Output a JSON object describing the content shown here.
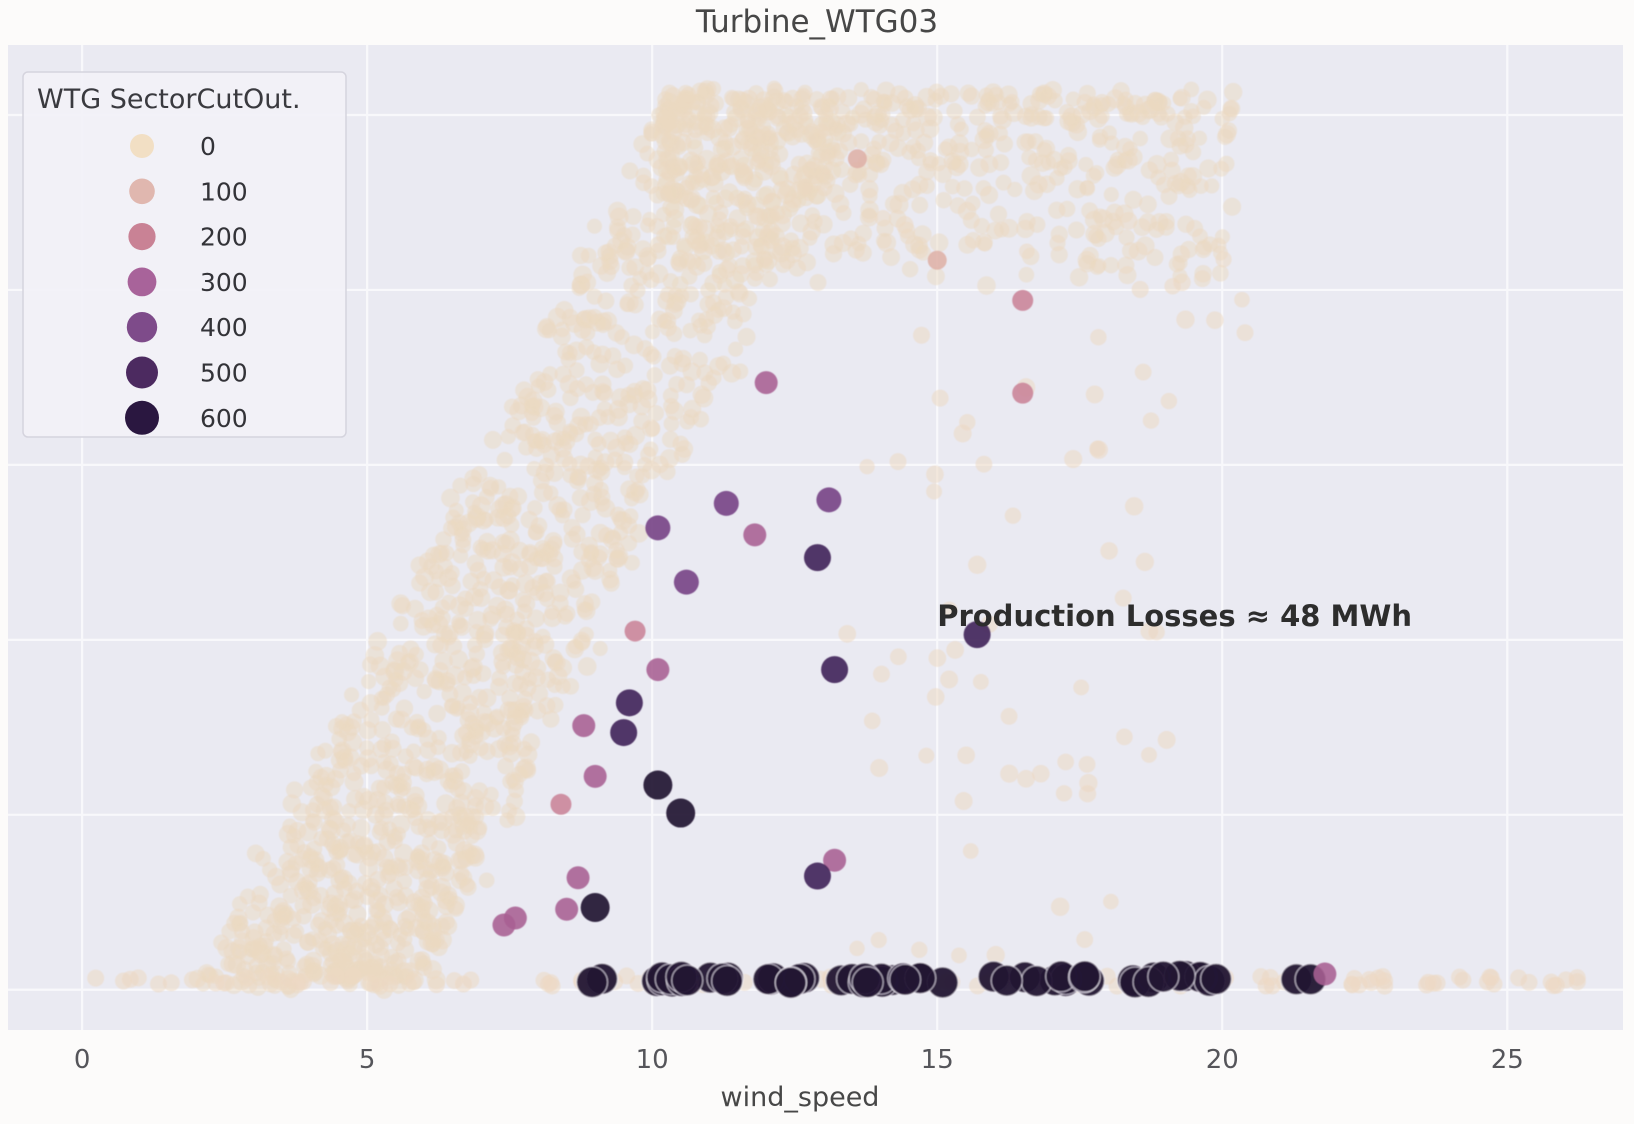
{
  "chart_data": {
    "type": "scatter",
    "title": "Turbine_WTG03",
    "xlabel": "wind_speed",
    "ylabel": "",
    "xlim": [
      -1.3,
      27.03
    ],
    "ylim_hidden_power_axis": [
      -23,
      540
    ],
    "x_ticks": [
      0,
      5,
      10,
      15,
      20,
      25
    ],
    "y_gridline_values": [
      0,
      100,
      200,
      300,
      400,
      500
    ],
    "grid": true,
    "plot_background": "#eaeaf2",
    "gridline_color": "#f8f8fb",
    "figure_background": "#fcfbfa",
    "legend": {
      "title": "WTG SectorCutOut.",
      "position": "upper-left",
      "entries": [
        {
          "label": "0",
          "color": "#f2dfc4",
          "marker_radius": 12.0
        },
        {
          "label": "100",
          "color": "#e0b7af",
          "marker_radius": 12.8
        },
        {
          "label": "200",
          "color": "#c98295",
          "marker_radius": 13.6
        },
        {
          "label": "300",
          "color": "#a8639a",
          "marker_radius": 14.4
        },
        {
          "label": "400",
          "color": "#7e4b8a",
          "marker_radius": 15.2
        },
        {
          "label": "500",
          "color": "#4c2a60",
          "marker_radius": 16.0
        },
        {
          "label": "600",
          "color": "#2a1740",
          "marker_radius": 17.0
        }
      ]
    },
    "annotation": {
      "text": "Production Losses ≈ 48 MWh",
      "wind_speed": 15.0,
      "power": 208
    },
    "point_colors_by_cutout": {
      "0": "#ecd9c2",
      "100": "#dfb1a6",
      "200": "#ca8397",
      "300": "#a86093",
      "400": "#7a4889",
      "500": "#46295c",
      "600": "#231434"
    },
    "point_radius_by_cutout": {
      "0": 8.5,
      "100": 9.5,
      "200": 10.5,
      "300": 11.5,
      "400": 12.5,
      "500": 13.5,
      "600": 14.5
    },
    "highlight_points": [
      {
        "wind_speed": 11.3,
        "power": 278,
        "cutout": 400
      },
      {
        "wind_speed": 13.1,
        "power": 280,
        "cutout": 400
      },
      {
        "wind_speed": 10.1,
        "power": 264,
        "cutout": 400
      },
      {
        "wind_speed": 11.8,
        "power": 260,
        "cutout": 300
      },
      {
        "wind_speed": 12.9,
        "power": 247,
        "cutout": 500
      },
      {
        "wind_speed": 12.0,
        "power": 347,
        "cutout": 300
      },
      {
        "wind_speed": 10.6,
        "power": 233,
        "cutout": 400
      },
      {
        "wind_speed": 9.7,
        "power": 205,
        "cutout": 200
      },
      {
        "wind_speed": 10.1,
        "power": 183,
        "cutout": 300
      },
      {
        "wind_speed": 13.2,
        "power": 183,
        "cutout": 500
      },
      {
        "wind_speed": 9.6,
        "power": 164,
        "cutout": 500
      },
      {
        "wind_speed": 8.8,
        "power": 151,
        "cutout": 300
      },
      {
        "wind_speed": 9.5,
        "power": 147,
        "cutout": 500
      },
      {
        "wind_speed": 9.0,
        "power": 122,
        "cutout": 300
      },
      {
        "wind_speed": 10.1,
        "power": 117,
        "cutout": 600
      },
      {
        "wind_speed": 10.5,
        "power": 101,
        "cutout": 600
      },
      {
        "wind_speed": 8.4,
        "power": 106,
        "cutout": 200
      },
      {
        "wind_speed": 8.7,
        "power": 64,
        "cutout": 300
      },
      {
        "wind_speed": 9.0,
        "power": 47,
        "cutout": 600
      },
      {
        "wind_speed": 8.5,
        "power": 46,
        "cutout": 300
      },
      {
        "wind_speed": 7.6,
        "power": 41,
        "cutout": 300
      },
      {
        "wind_speed": 7.4,
        "power": 37,
        "cutout": 300
      },
      {
        "wind_speed": 13.2,
        "power": 74,
        "cutout": 300
      },
      {
        "wind_speed": 12.9,
        "power": 65,
        "cutout": 500
      },
      {
        "wind_speed": 15.0,
        "power": 417,
        "cutout": 100
      },
      {
        "wind_speed": 13.6,
        "power": 475,
        "cutout": 100
      },
      {
        "wind_speed": 16.5,
        "power": 394,
        "cutout": 200
      },
      {
        "wind_speed": 16.5,
        "power": 341,
        "cutout": 200
      },
      {
        "wind_speed": 15.7,
        "power": 203,
        "cutout": 500
      },
      {
        "wind_speed": 21.8,
        "power": 9,
        "cutout": 300
      }
    ],
    "generated_clusters": {
      "seed": 20240613,
      "baseline_row": {
        "cutout": 0,
        "count": 128,
        "wind_min": -0.1,
        "wind_max": 26.3,
        "power": 5,
        "power_jitter": 3
      },
      "cutout_row": {
        "cutout": 600,
        "count": 58,
        "wind_min": 8.45,
        "wind_max": 19.9,
        "power": 6,
        "radius": 15.5,
        "extra_wind": [
          21.3,
          21.55
        ]
      },
      "rising_cloud": {
        "cutout": 0,
        "count": 1350,
        "power_min": 4,
        "power_max": 504,
        "wind_left_at_0": 2.1,
        "wind_left_at_max": 10.2,
        "wind_right_at_0": 6.0,
        "wind_right_at_max": 13.6,
        "bottom_bias": 1.35,
        "wind_jitter": 0.35
      },
      "plateau_cloud": {
        "cutout": 0,
        "count": 620,
        "wind_min": 10.2,
        "wind_max": 20.2,
        "power_min": 405,
        "power_max": 512,
        "top_bias": 1.6,
        "left_bias": 1.25
      },
      "sparse_mid": {
        "cutout": 0,
        "count": 75,
        "power_min": 15,
        "power_max": 450,
        "wind_min": 13.4,
        "wind_max_base": 17.6,
        "wind_max_per_power": 0.0105
      }
    }
  }
}
